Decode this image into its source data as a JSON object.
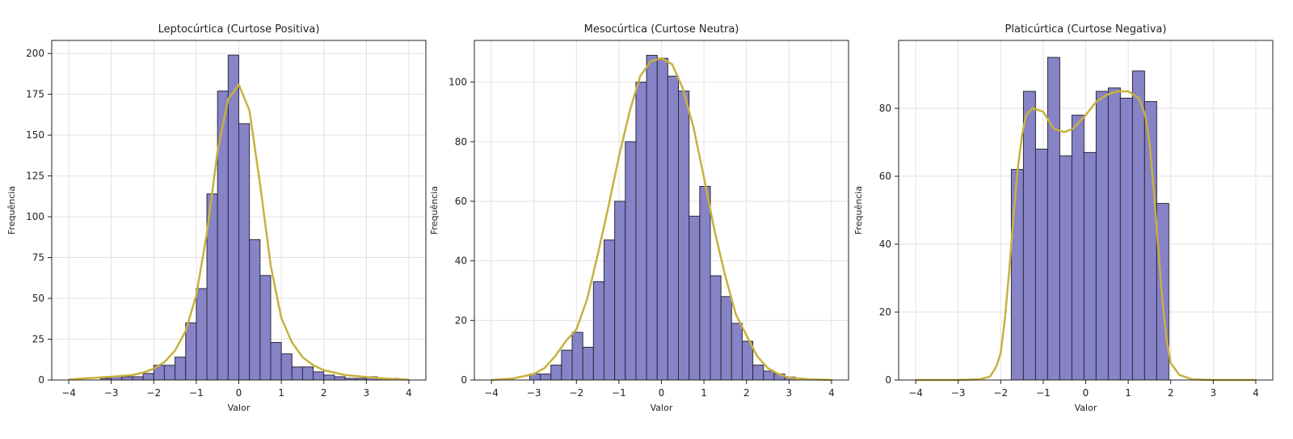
{
  "colors": {
    "bar_fill": "#8683c6",
    "bar_edge": "#2b2b3d",
    "kde_line": "#c8b13f",
    "grid": "#e2e2e2"
  },
  "chart_data": [
    {
      "type": "bar",
      "title": "Leptocúrtica (Curtose Positiva)",
      "xlabel": "Valor",
      "ylabel": "Frequência",
      "xlim": [
        -4.4,
        4.4
      ],
      "ylim": [
        0,
        208
      ],
      "xticks": [
        -4,
        -3,
        -2,
        -1,
        0,
        1,
        2,
        3,
        4
      ],
      "yticks": [
        0,
        25,
        50,
        75,
        100,
        125,
        150,
        175,
        200
      ],
      "grid": true,
      "bin_width": 0.25,
      "bins_left": [
        -3.25,
        -3.0,
        -2.75,
        -2.5,
        -2.25,
        -2.0,
        -1.75,
        -1.5,
        -1.25,
        -1.0,
        -0.75,
        -0.5,
        -0.25,
        0.0,
        0.25,
        0.5,
        0.75,
        1.0,
        1.25,
        1.5,
        1.75,
        2.0,
        2.25,
        2.5,
        2.75,
        3.0,
        3.25,
        3.5
      ],
      "values": [
        1,
        2,
        2,
        2,
        4,
        9,
        9,
        14,
        35,
        56,
        114,
        177,
        199,
        157,
        86,
        64,
        23,
        16,
        8,
        8,
        5,
        3,
        2,
        1,
        1,
        2,
        1,
        1
      ],
      "kde": {
        "x": [
          -4.0,
          -3.5,
          -3.0,
          -2.5,
          -2.25,
          -2.0,
          -1.75,
          -1.5,
          -1.25,
          -1.0,
          -0.75,
          -0.5,
          -0.25,
          0.0,
          0.25,
          0.5,
          0.75,
          1.0,
          1.25,
          1.5,
          1.75,
          2.0,
          2.5,
          3.0,
          3.5,
          4.0
        ],
        "y": [
          0.3,
          1.2,
          2.0,
          3.0,
          4.5,
          7,
          11,
          18,
          30,
          52,
          90,
          140,
          172,
          181,
          165,
          120,
          70,
          38,
          23,
          14,
          9,
          6,
          3,
          1.8,
          0.8,
          0.2
        ]
      }
    },
    {
      "type": "bar",
      "title": "Mesocúrtica (Curtose Neutra)",
      "xlabel": "Valor",
      "ylabel": "Frequência",
      "xlim": [
        -4.4,
        4.4
      ],
      "ylim": [
        0,
        114
      ],
      "xticks": [
        -4,
        -3,
        -2,
        -1,
        0,
        1,
        2,
        3,
        4
      ],
      "yticks": [
        0,
        20,
        40,
        60,
        80,
        100
      ],
      "grid": true,
      "bin_width": 0.25,
      "bins_left": [
        -3.1,
        -2.85,
        -2.6,
        -2.35,
        -2.1,
        -1.85,
        -1.6,
        -1.35,
        -1.1,
        -0.85,
        -0.6,
        -0.35,
        -0.1,
        0.15,
        0.4,
        0.65,
        0.9,
        1.15,
        1.4,
        1.65,
        1.9,
        2.15,
        2.4,
        2.65,
        2.9
      ],
      "values": [
        2,
        2,
        5,
        10,
        16,
        11,
        33,
        47,
        60,
        80,
        100,
        109,
        108,
        102,
        97,
        55,
        65,
        35,
        28,
        19,
        13,
        5,
        3,
        2,
        1
      ],
      "kde": {
        "x": [
          -4.0,
          -3.5,
          -3.0,
          -2.75,
          -2.5,
          -2.25,
          -2.0,
          -1.75,
          -1.5,
          -1.25,
          -1.0,
          -0.75,
          -0.5,
          -0.25,
          0.0,
          0.25,
          0.5,
          0.75,
          1.0,
          1.25,
          1.5,
          1.75,
          2.0,
          2.25,
          2.5,
          2.75,
          3.0,
          3.5,
          4.0
        ],
        "y": [
          0,
          0.5,
          2,
          4,
          8,
          13,
          17,
          27,
          42,
          58,
          75,
          90,
          102,
          107,
          108,
          106,
          98,
          85,
          68,
          50,
          35,
          22,
          15,
          8,
          4,
          2,
          0.8,
          0.2,
          0
        ]
      }
    },
    {
      "type": "bar",
      "title": "Platicúrtica (Curtose Negativa)",
      "xlabel": "Valor",
      "ylabel": "Frequência",
      "xlim": [
        -4.4,
        4.4
      ],
      "ylim": [
        0,
        100
      ],
      "xticks": [
        -4,
        -3,
        -2,
        -1,
        0,
        1,
        2,
        3,
        4
      ],
      "yticks": [
        0,
        20,
        40,
        60,
        80
      ],
      "grid": true,
      "bin_width": 0.285,
      "bins_left": [
        -1.75,
        -1.465,
        -1.18,
        -0.895,
        -0.61,
        -0.325,
        -0.04,
        0.245,
        0.53,
        0.815,
        1.1,
        1.385,
        1.67
      ],
      "values": [
        62,
        85,
        68,
        95,
        66,
        78,
        67,
        85,
        86,
        83,
        91,
        82,
        52
      ],
      "kde": {
        "x": [
          -4.0,
          -3.0,
          -2.5,
          -2.25,
          -2.1,
          -2.0,
          -1.9,
          -1.8,
          -1.7,
          -1.6,
          -1.5,
          -1.4,
          -1.25,
          -1.0,
          -0.75,
          -0.5,
          -0.3,
          0.0,
          0.25,
          0.5,
          0.75,
          1.0,
          1.25,
          1.4,
          1.5,
          1.6,
          1.7,
          1.8,
          1.9,
          2.0,
          2.2,
          2.5,
          3.0,
          4.0
        ],
        "y": [
          0,
          0,
          0.2,
          1,
          4,
          8,
          18,
          32,
          48,
          62,
          72,
          78,
          80,
          79,
          74,
          73,
          74,
          78,
          82,
          84,
          85,
          85,
          83,
          78,
          70,
          56,
          40,
          24,
          12,
          5,
          1.5,
          0.2,
          0,
          0
        ]
      }
    }
  ]
}
